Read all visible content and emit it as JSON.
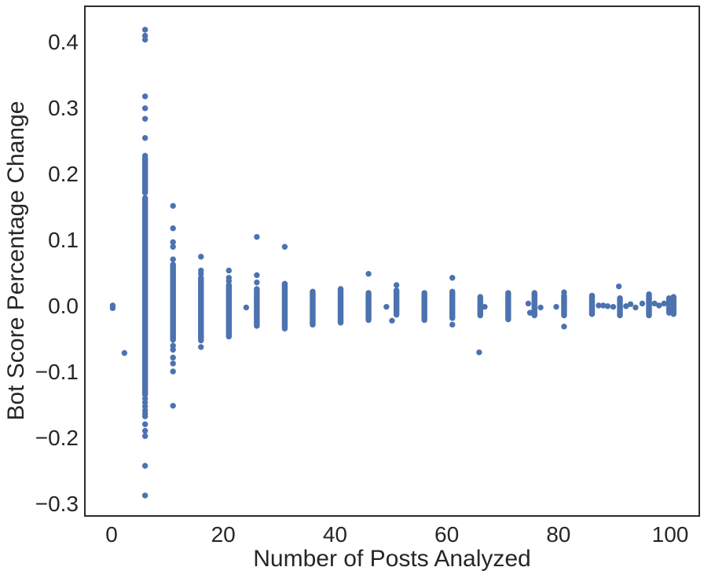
{
  "chart_data": {
    "type": "scatter",
    "title": "",
    "xlabel": "Number of Posts Analyzed",
    "ylabel": "Bot Score Percentage Change",
    "xlim": [
      -5,
      105.3
    ],
    "ylim": [
      -0.32,
      0.4535
    ],
    "grid": false,
    "legend": null,
    "marker_color": "#4c72b0",
    "axis_color": "#2b2b2b",
    "xticks": [
      0,
      20,
      40,
      60,
      80,
      100
    ],
    "xtick_labels": [
      "0",
      "20",
      "40",
      "60",
      "80",
      "100"
    ],
    "yticks": [
      0.4,
      0.3,
      0.2,
      0.1,
      0.0,
      -0.1,
      -0.2,
      -0.3
    ],
    "ytick_labels": [
      "0.4",
      "0.3",
      "0.2",
      "0.1",
      "0.0",
      "−0.1",
      "−0.2",
      "−0.3"
    ],
    "columns": [
      {
        "x": 0.2,
        "solid": [],
        "dots": [
          0.0,
          -0.004
        ]
      },
      {
        "x": 2.3,
        "solid": [],
        "dots": [
          -0.072
        ]
      },
      {
        "x": 6,
        "solid": [
          [
            0.171,
            0.223
          ],
          [
            -0.135,
            0.163
          ]
        ],
        "dots": [
          0.418,
          0.409,
          0.403,
          0.317,
          0.299,
          0.283,
          0.254,
          0.227,
          -0.141,
          -0.147,
          -0.153,
          -0.159,
          -0.164,
          -0.168,
          -0.18,
          -0.19,
          -0.198,
          -0.243,
          -0.288
        ]
      },
      {
        "x": 11,
        "solid": [
          [
            -0.052,
            0.062
          ]
        ],
        "dots": [
          0.151,
          0.117,
          0.096,
          0.089,
          0.07,
          -0.061,
          -0.067,
          -0.079,
          -0.088,
          -0.1,
          -0.152
        ]
      },
      {
        "x": 16,
        "solid": [
          [
            -0.053,
            0.042
          ]
        ],
        "dots": [
          0.074,
          0.053,
          0.048,
          -0.063
        ]
      },
      {
        "x": 21,
        "solid": [
          [
            -0.047,
            0.031
          ]
        ],
        "dots": [
          0.053,
          0.042,
          0.037
        ]
      },
      {
        "x": 24.1,
        "solid": [],
        "dots": [
          -0.003
        ]
      },
      {
        "x": 26,
        "solid": [
          [
            -0.031,
            0.025
          ]
        ],
        "dots": [
          0.104,
          0.046,
          0.035
        ]
      },
      {
        "x": 31,
        "solid": [
          [
            -0.035,
            0.033
          ]
        ],
        "dots": [
          0.089
        ]
      },
      {
        "x": 36,
        "solid": [
          [
            -0.029,
            0.021
          ]
        ],
        "dots": []
      },
      {
        "x": 41,
        "solid": [
          [
            -0.026,
            0.025
          ]
        ],
        "dots": []
      },
      {
        "x": 46,
        "solid": [
          [
            -0.022,
            0.019
          ]
        ],
        "dots": [
          0.048
        ]
      },
      {
        "x": 49.2,
        "solid": [],
        "dots": [
          -0.002
        ]
      },
      {
        "x": 50.2,
        "solid": [],
        "dots": [
          -0.023
        ]
      },
      {
        "x": 51,
        "solid": [
          [
            -0.014,
            0.023
          ]
        ],
        "dots": [
          0.031
        ]
      },
      {
        "x": 56,
        "solid": [
          [
            -0.022,
            0.019
          ]
        ],
        "dots": []
      },
      {
        "x": 61,
        "solid": [
          [
            -0.019,
            0.021
          ]
        ],
        "dots": [
          0.042,
          -0.029
        ]
      },
      {
        "x": 65.8,
        "solid": [],
        "dots": [
          -0.071
        ]
      },
      {
        "x": 66,
        "solid": [
          [
            -0.015,
            0.013
          ]
        ],
        "dots": []
      },
      {
        "x": 66.8,
        "solid": [],
        "dots": [
          -0.002
        ]
      },
      {
        "x": 71,
        "solid": [
          [
            -0.021,
            0.017
          ]
        ],
        "dots": [
          0.019
        ]
      },
      {
        "x": 74.6,
        "solid": [],
        "dots": [
          0.003
        ]
      },
      {
        "x": 74.9,
        "solid": [],
        "dots": [
          -0.011
        ]
      },
      {
        "x": 75.7,
        "solid": [
          [
            -0.015,
            0.019
          ]
        ],
        "dots": []
      },
      {
        "x": 76.8,
        "solid": [],
        "dots": [
          -0.003
        ]
      },
      {
        "x": 79.6,
        "solid": [],
        "dots": [
          -0.002
        ]
      },
      {
        "x": 81,
        "solid": [
          [
            -0.015,
            0.015
          ]
        ],
        "dots": [
          0.02,
          -0.032
        ]
      },
      {
        "x": 86,
        "solid": [
          [
            -0.013,
            0.015
          ]
        ],
        "dots": []
      },
      {
        "x": 87.2,
        "solid": [],
        "dots": [
          0.0
        ]
      },
      {
        "x": 88.0,
        "solid": [],
        "dots": [
          0.0
        ]
      },
      {
        "x": 88.8,
        "solid": [],
        "dots": [
          -0.001
        ]
      },
      {
        "x": 89.8,
        "solid": [],
        "dots": [
          -0.002
        ]
      },
      {
        "x": 90.8,
        "solid": [],
        "dots": [
          0.029
        ]
      },
      {
        "x": 91,
        "solid": [
          [
            -0.015,
            0.011
          ]
        ],
        "dots": []
      },
      {
        "x": 92.1,
        "solid": [],
        "dots": [
          -0.001
        ]
      },
      {
        "x": 92.9,
        "solid": [],
        "dots": [
          0.002
        ]
      },
      {
        "x": 93.8,
        "solid": [],
        "dots": [
          -0.003
        ]
      },
      {
        "x": 95.0,
        "solid": [],
        "dots": [
          0.003
        ]
      },
      {
        "x": 96.2,
        "solid": [
          [
            -0.015,
            0.017
          ]
        ],
        "dots": []
      },
      {
        "x": 97.2,
        "solid": [],
        "dots": [
          0.003
        ]
      },
      {
        "x": 98.0,
        "solid": [],
        "dots": [
          0.0
        ]
      },
      {
        "x": 98.9,
        "solid": [],
        "dots": [
          0.003
        ]
      },
      {
        "x": 99.8,
        "solid": [
          [
            -0.011,
            0.011
          ]
        ],
        "dots": []
      },
      {
        "x": 100.6,
        "solid": [
          [
            -0.013,
            0.013
          ]
        ],
        "dots": []
      }
    ]
  }
}
